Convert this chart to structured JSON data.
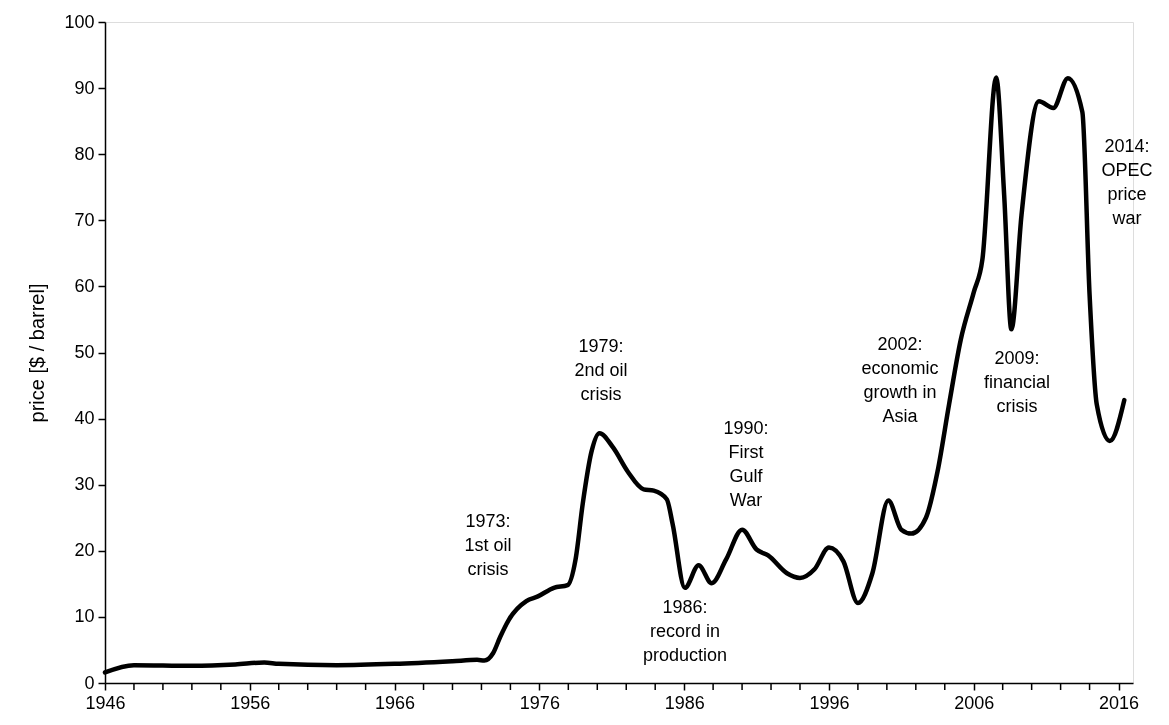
{
  "chart_data": {
    "type": "line",
    "ylabel": "price [$ / barrel]",
    "xlim": [
      1946,
      2017
    ],
    "ylim": [
      0,
      100
    ],
    "xticks": [
      1946,
      {
        "value": 1948,
        "label": null
      },
      {
        "value": 1950,
        "label": null
      },
      {
        "value": 1952,
        "label": null
      },
      {
        "value": 1954,
        "label": null
      },
      1956,
      {
        "value": 1958,
        "label": null
      },
      {
        "value": 1960,
        "label": null
      },
      {
        "value": 1962,
        "label": null
      },
      {
        "value": 1964,
        "label": null
      },
      1966,
      {
        "value": 1968,
        "label": null
      },
      {
        "value": 1970,
        "label": null
      },
      {
        "value": 1972,
        "label": null
      },
      {
        "value": 1974,
        "label": null
      },
      1976,
      {
        "value": 1978,
        "label": null
      },
      {
        "value": 1980,
        "label": null
      },
      {
        "value": 1982,
        "label": null
      },
      {
        "value": 1984,
        "label": null
      },
      1986,
      {
        "value": 1988,
        "label": null
      },
      {
        "value": 1990,
        "label": null
      },
      {
        "value": 1992,
        "label": null
      },
      {
        "value": 1994,
        "label": null
      },
      1996,
      {
        "value": 1998,
        "label": null
      },
      {
        "value": 2000,
        "label": null
      },
      {
        "value": 2002,
        "label": null
      },
      {
        "value": 2004,
        "label": null
      },
      2006,
      {
        "value": 2008,
        "label": null
      },
      {
        "value": 2010,
        "label": null
      },
      {
        "value": 2012,
        "label": null
      },
      {
        "value": 2014,
        "label": null
      },
      2016
    ],
    "yticks": [
      0,
      10,
      20,
      30,
      40,
      50,
      60,
      70,
      80,
      90,
      100
    ],
    "grid": false,
    "marker": "none",
    "line_style": "solid",
    "series": [
      {
        "color": "#000000",
        "x": [
          1946.0,
          1948.0,
          1952.0,
          1955.0,
          1957.0,
          1958.0,
          1962.0,
          1966.0,
          1970.0,
          1971.7,
          1972.2,
          1972.8,
          1973.3,
          1973.9,
          1975.1,
          1975.9,
          1977.0,
          1977.95,
          1978.5,
          1979.0,
          1979.6,
          1980.15,
          1981.1,
          1982.1,
          1983.2,
          1983.9,
          1984.8,
          1985.2,
          1986.05,
          1987.0,
          1987.9,
          1988.9,
          1990.0,
          1991.0,
          1991.8,
          1993.1,
          1994.0,
          1995.0,
          1996.0,
          1997.0,
          1998.0,
          1999.0,
          2000.1,
          2001.0,
          2001.7,
          2002.7,
          2003.5,
          2004.3,
          2005.1,
          2006.0,
          2006.6,
          2007.55,
          2008.1,
          2008.6,
          2009.3,
          2010.5,
          2011.5,
          2012.5,
          2013.5,
          2014.0,
          2014.5,
          2015.4,
          2016.4
        ],
        "values": [
          1.6,
          2.7,
          2.6,
          2.8,
          3.1,
          2.9,
          2.7,
          2.9,
          3.3,
          3.5,
          3.4,
          4.5,
          7.0,
          9.6,
          12.4,
          13.1,
          14.4,
          14.8,
          18.7,
          27.2,
          35.0,
          37.8,
          35.6,
          32.0,
          29.3,
          29.1,
          27.8,
          24.1,
          14.4,
          17.8,
          15.1,
          18.7,
          23.2,
          20.2,
          19.3,
          16.6,
          15.9,
          17.2,
          20.5,
          18.4,
          12.1,
          16.6,
          27.6,
          23.2,
          22.6,
          25.0,
          32.0,
          42.2,
          51.9,
          59.1,
          64.1,
          91.6,
          73.9,
          53.5,
          70.8,
          88.0,
          87.0,
          91.5,
          86.4,
          58.8,
          42.1,
          36.6,
          42.8
        ]
      }
    ],
    "annotations": [
      "1973:\n1st oil\ncrisis",
      "1979:\n2nd oil\ncrisis",
      "1986:\nrecord in\nproduction",
      "1990:\nFirst\nGulf\nWar",
      "2002:\neconomic\ngrowth in\nAsia",
      "2009:\nfinancial\ncrisis",
      "2014:\nOPEC\nprice\nwar"
    ]
  }
}
